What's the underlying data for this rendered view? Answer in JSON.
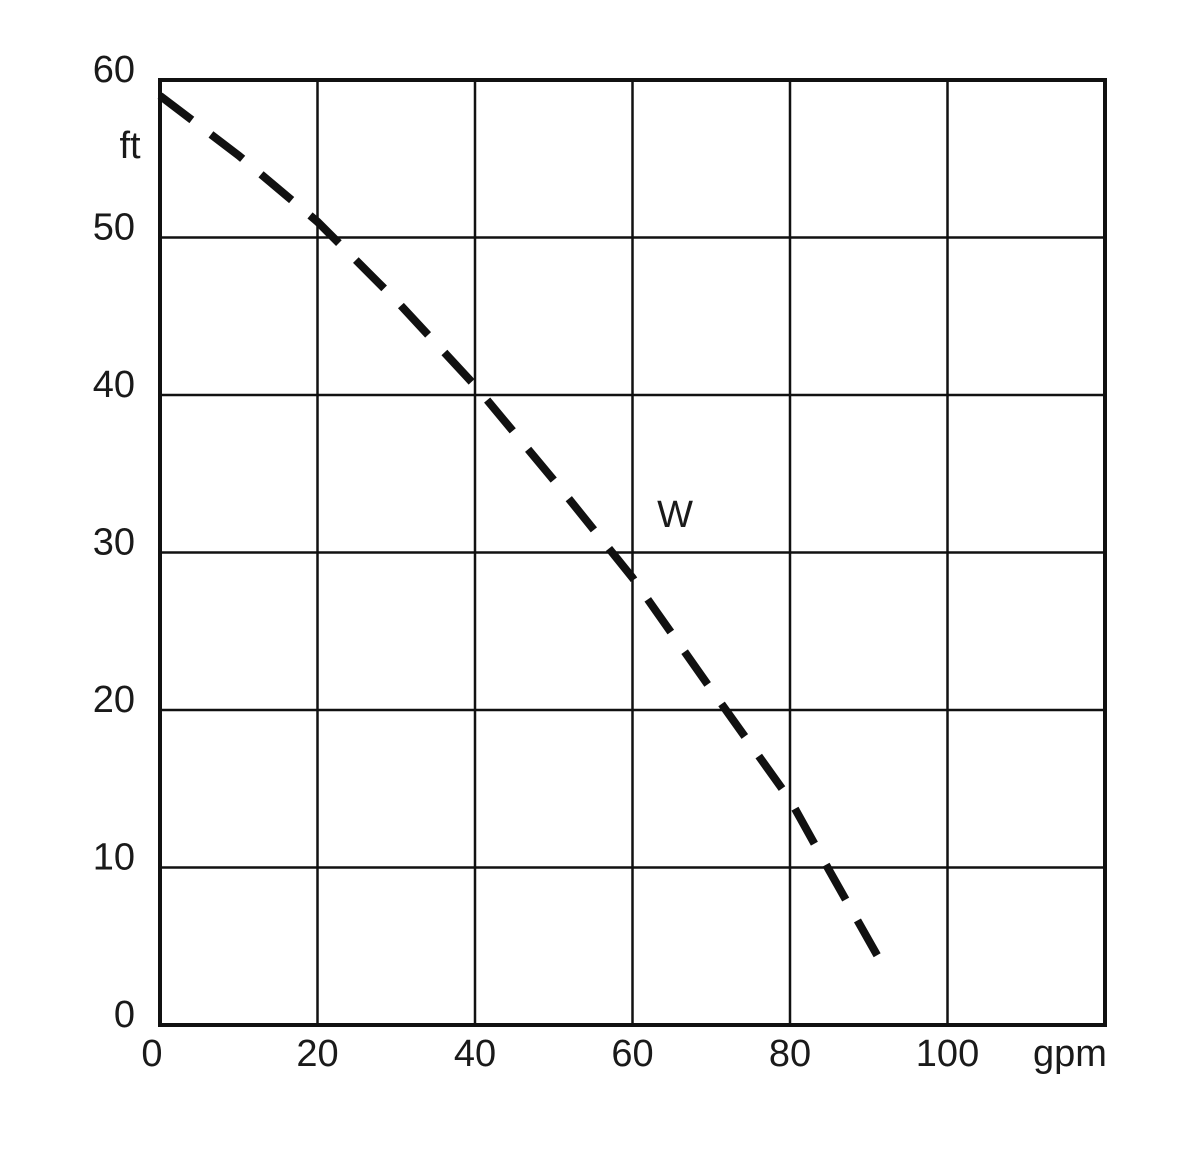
{
  "chart_data": {
    "type": "line",
    "x_label": "gpm",
    "y_label": "ft",
    "x": [
      0,
      10,
      20,
      30,
      40,
      50,
      60,
      70,
      80,
      85,
      92
    ],
    "series": [
      {
        "name": "W",
        "color": "#111111",
        "values": [
          59,
          55.2,
          51,
          46,
          40.6,
          34.6,
          28.4,
          21.3,
          14.3,
          9.8,
          3.6
        ]
      }
    ],
    "xlim": [
      0,
      120
    ],
    "xticks": [
      0,
      20,
      40,
      60,
      80,
      100
    ],
    "ylim": [
      0,
      60
    ],
    "yticks": [
      0,
      10,
      20,
      30,
      40,
      50,
      60
    ],
    "grid": true
  }
}
